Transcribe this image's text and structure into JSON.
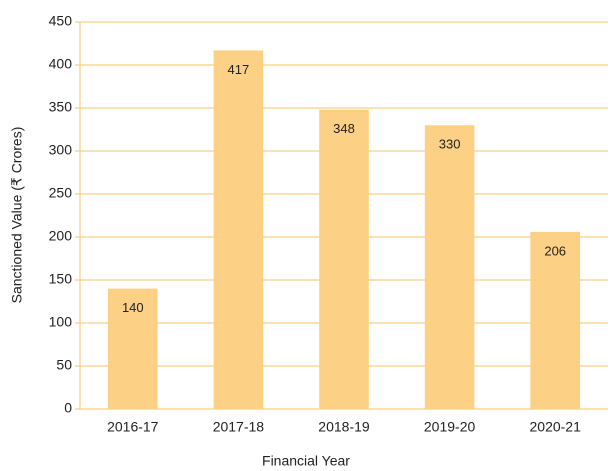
{
  "chart_data": {
    "type": "bar",
    "x_label": "Financial Year",
    "y_label": "Sanctioned Value (₹ Crores)",
    "categories": [
      "2016-17",
      "2017-18",
      "2018-19",
      "2019-20",
      "2020-21"
    ],
    "values": [
      140,
      417,
      348,
      330,
      206
    ],
    "color": "#fdd185",
    "ylim": [
      0,
      450
    ],
    "yticks": [
      0,
      50,
      100,
      150,
      200,
      250,
      300,
      350,
      400,
      450
    ],
    "grid": true,
    "grid_color": "#f7c66b"
  }
}
